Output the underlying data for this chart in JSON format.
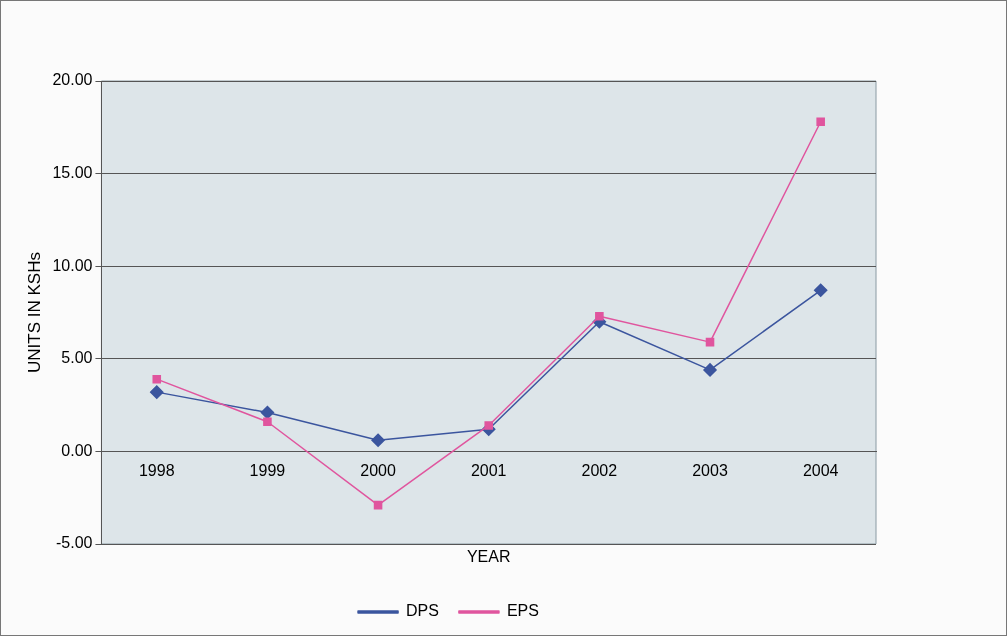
{
  "chart_data": {
    "type": "line",
    "xlabel": "YEAR",
    "ylabel": "UNITS IN KSHs",
    "categories": [
      "1998",
      "1999",
      "2000",
      "2001",
      "2002",
      "2003",
      "2004"
    ],
    "series": [
      {
        "name": "DPS",
        "color": "#3b559e",
        "marker": "diamond",
        "values": [
          3.2,
          2.1,
          0.6,
          1.2,
          7.0,
          4.4,
          8.7
        ]
      },
      {
        "name": "EPS",
        "color": "#e0559e",
        "marker": "square",
        "values": [
          3.9,
          1.6,
          -2.9,
          1.4,
          7.3,
          5.9,
          17.8
        ]
      }
    ],
    "ylim": [
      -5,
      20
    ],
    "yticks": [
      {
        "value": -5,
        "label": "-5.00"
      },
      {
        "value": 0,
        "label": "0.00"
      },
      {
        "value": 5,
        "label": "5.00"
      },
      {
        "value": 10,
        "label": "10.00"
      },
      {
        "value": 15,
        "label": "15.00"
      },
      {
        "value": 20,
        "label": "20.00"
      }
    ],
    "grid": "y",
    "legend": "bottom",
    "line_style": "solid"
  }
}
